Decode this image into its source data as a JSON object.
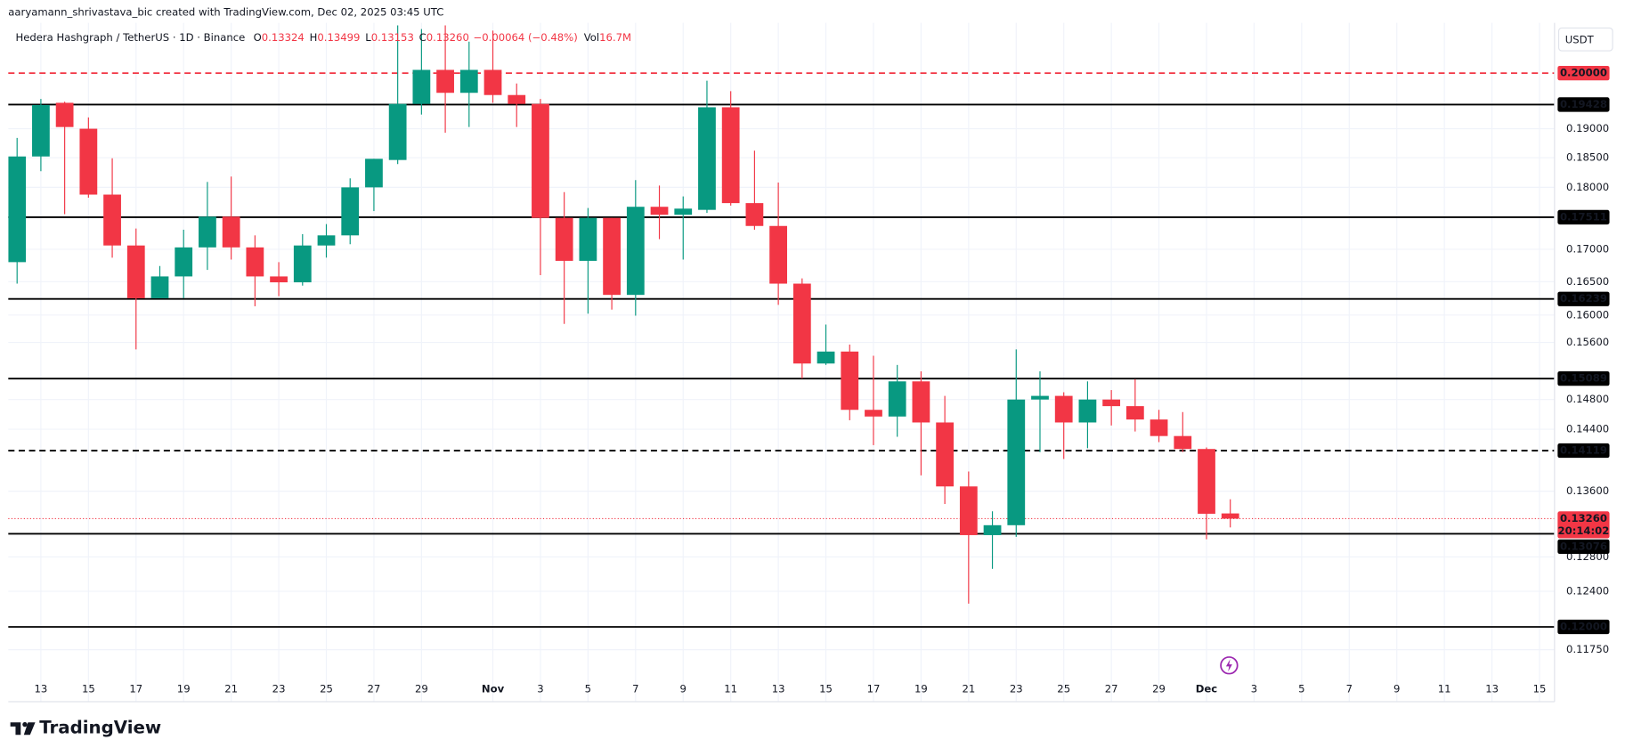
{
  "header": {
    "credit": "aaryamann_shrivastava_bic created with TradingView.com, Dec 02, 2025 03:45 UTC",
    "brand": "TradingView"
  },
  "chart_data": {
    "type": "candlestick",
    "title": "Hedera Hashgraph / TetherUS · 1D · Binance",
    "legend_values": [
      {
        "key": "O",
        "value": "0.13324"
      },
      {
        "key": "H",
        "value": "0.13499"
      },
      {
        "key": "L",
        "value": "0.13153"
      },
      {
        "key": "C",
        "value": "0.13260"
      }
    ],
    "change": "−0.00064 (−0.48%)",
    "volume": {
      "key": "Vol",
      "value": "16.7M"
    },
    "legend_color": "#f23645",
    "axis_unit": "USDT",
    "categories": [
      null,
      "13",
      null,
      "15",
      null,
      "17",
      null,
      "19",
      null,
      "21",
      null,
      "23",
      null,
      "25",
      null,
      "27",
      null,
      "29",
      null,
      null,
      "Nov",
      null,
      "3",
      null,
      "5",
      null,
      "7",
      null,
      "9",
      null,
      "11",
      null,
      "13",
      null,
      "15",
      null,
      "17",
      null,
      "19",
      null,
      "21",
      null,
      "23",
      null,
      "25",
      null,
      "27",
      null,
      "29",
      null,
      "Dec",
      null,
      "3",
      null,
      "5",
      null,
      "7",
      null,
      "9",
      null,
      "11",
      null,
      "13",
      null,
      "15"
    ],
    "open": [
      0.168,
      0.1852,
      0.1946,
      0.19,
      0.1788,
      0.1706,
      0.1625,
      0.1658,
      0.1703,
      0.1752,
      0.1703,
      0.1658,
      0.1649,
      0.1706,
      0.1722,
      0.18,
      0.1846,
      0.1944,
      0.2006,
      0.1964,
      0.2006,
      0.196,
      0.1944,
      0.175,
      0.1682,
      0.175,
      0.163,
      0.1768,
      0.1755,
      0.1763,
      0.1938,
      0.1774,
      0.1737,
      0.1647,
      0.153,
      0.1547,
      0.1466,
      0.1457,
      0.1505,
      0.1449,
      0.1366,
      0.1306,
      0.1318,
      0.148,
      0.1485,
      0.1449,
      0.148,
      0.1471,
      0.1453,
      0.1431,
      0.1414,
      0.13324,
      null,
      null,
      null,
      null,
      null,
      null,
      null,
      null,
      null,
      null,
      null,
      null,
      null
    ],
    "high": [
      0.1884,
      0.1953,
      0.1948,
      0.192,
      0.1849,
      0.1733,
      0.1674,
      0.1731,
      0.1809,
      0.1818,
      0.1722,
      0.168,
      0.1724,
      0.174,
      0.1815,
      0.1848,
      0.209,
      0.2083,
      0.209,
      0.2059,
      0.208,
      0.1981,
      0.1953,
      0.1792,
      0.1766,
      0.175,
      0.1812,
      0.1803,
      0.1785,
      0.1986,
      0.1967,
      0.1862,
      0.1808,
      0.1655,
      0.1586,
      0.1557,
      0.1541,
      0.1528,
      0.1519,
      0.1485,
      0.1385,
      0.1335,
      0.155,
      0.1519,
      0.149,
      0.1505,
      0.1493,
      0.1508,
      0.1466,
      0.1463,
      0.1416,
      0.13499,
      null,
      null,
      null,
      null,
      null,
      null,
      null,
      null,
      null,
      null,
      null,
      null,
      null
    ],
    "low": [
      0.1647,
      0.1827,
      0.1756,
      0.1783,
      0.1687,
      0.155,
      0.1625,
      0.1625,
      0.1668,
      0.1684,
      0.1613,
      0.1628,
      0.1644,
      0.1687,
      0.1708,
      0.1761,
      0.1839,
      0.1925,
      0.1893,
      0.1903,
      0.1946,
      0.1903,
      0.166,
      0.1587,
      0.1602,
      0.1608,
      0.1599,
      0.1716,
      0.1684,
      0.1758,
      0.177,
      0.1731,
      0.1615,
      0.1509,
      0.1528,
      0.1452,
      0.1419,
      0.143,
      0.138,
      0.1344,
      0.1226,
      0.1266,
      0.1304,
      0.141,
      0.1401,
      0.1415,
      0.1445,
      0.1437,
      0.1423,
      0.141,
      0.1301,
      0.13153,
      null,
      null,
      null,
      null,
      null,
      null,
      null,
      null,
      null,
      null,
      null,
      null,
      null
    ],
    "close": [
      0.1852,
      0.1942,
      0.1903,
      0.1788,
      0.1706,
      0.1625,
      0.1658,
      0.1703,
      0.1752,
      0.1703,
      0.1658,
      0.1649,
      0.1706,
      0.1722,
      0.18,
      0.1848,
      0.1944,
      0.2006,
      0.1964,
      0.2006,
      0.196,
      0.1944,
      0.175,
      0.1682,
      0.175,
      0.163,
      0.1768,
      0.1755,
      0.1765,
      0.1938,
      0.1774,
      0.1737,
      0.1647,
      0.153,
      0.1547,
      0.1466,
      0.1457,
      0.1505,
      0.1449,
      0.1366,
      0.1306,
      0.1318,
      0.148,
      0.1485,
      0.1449,
      0.148,
      0.1471,
      0.1453,
      0.1431,
      0.1414,
      0.1332,
      0.1326,
      null,
      null,
      null,
      null,
      null,
      null,
      null,
      null,
      null,
      null,
      null,
      null,
      null
    ],
    "up_color": "#089981",
    "down_color": "#f23645",
    "ylim": [
      0.112,
      0.2095
    ],
    "log_scale": true,
    "grid": true,
    "yticks": [
      {
        "value": 0.19,
        "label": "0.19000"
      },
      {
        "value": 0.185,
        "label": "0.18500"
      },
      {
        "value": 0.18,
        "label": "0.18000"
      },
      {
        "value": 0.17,
        "label": "0.17000"
      },
      {
        "value": 0.165,
        "label": "0.16500"
      },
      {
        "value": 0.16,
        "label": "0.16000"
      },
      {
        "value": 0.156,
        "label": "0.15600"
      },
      {
        "value": 0.148,
        "label": "0.14800"
      },
      {
        "value": 0.144,
        "label": "0.14400"
      },
      {
        "value": 0.136,
        "label": "0.13600"
      },
      {
        "value": 0.128,
        "label": "0.12800"
      },
      {
        "value": 0.124,
        "label": "0.12400"
      },
      {
        "value": 0.1175,
        "label": "0.11750"
      }
    ],
    "levels": [
      {
        "value": 0.2,
        "label": "0.20000",
        "style": "dashed",
        "color": "#f23645"
      },
      {
        "value": 0.19428,
        "label": "0.19428",
        "style": "solid",
        "color": "#000000"
      },
      {
        "value": 0.17511,
        "label": "0.17511",
        "style": "solid",
        "color": "#000000"
      },
      {
        "value": 0.16239,
        "label": "0.16239",
        "style": "solid",
        "color": "#000000"
      },
      {
        "value": 0.15089,
        "label": "0.15089",
        "style": "solid",
        "color": "#000000"
      },
      {
        "value": 0.14119,
        "label": "0.14119",
        "style": "dashed",
        "color": "#000000"
      },
      {
        "value": 0.13076,
        "label": "0.13076",
        "style": "solid",
        "color": "#000000"
      },
      {
        "value": 0.12,
        "label": "0.12000",
        "style": "solid",
        "color": "#000000"
      }
    ],
    "current_price": {
      "value": 0.1326,
      "label": "0.13260",
      "countdown": "20:14:02",
      "color": "#f23645"
    }
  }
}
